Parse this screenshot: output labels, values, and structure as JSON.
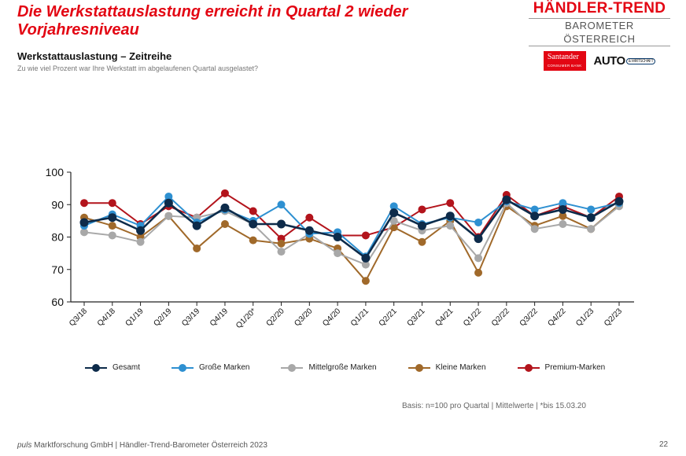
{
  "header": {
    "headline": "Die Werkstattauslastung erreicht in Quartal 2 wieder Vorjahresniveau",
    "subtitle": "Werkstattauslastung – Zeitreihe",
    "question": "Zu wie viel Prozent war Ihre Werkstatt im abgelaufenen Quartal ausgelastet?"
  },
  "logo": {
    "title": "HÄNDLER-TREND",
    "subtitle": "BAROMETER ÖSTERREICH",
    "santander": "Santander",
    "santander_sub": "CONSUMER BANK",
    "auto": "AUTO",
    "auto_sub": "& WIRTSCHAFT"
  },
  "chart_data": {
    "type": "line",
    "categories": [
      "Q3/18",
      "Q4/18",
      "Q1/19",
      "Q2/19",
      "Q3/19",
      "Q4/19",
      "Q1/20*",
      "Q2/20",
      "Q3/20",
      "Q4/20",
      "Q1/21",
      "Q2/21",
      "Q3/21",
      "Q4/21",
      "Q1/22",
      "Q2/22",
      "Q3/22",
      "Q4/22",
      "Q1/23",
      "Q2/23"
    ],
    "ylim": [
      60,
      100
    ],
    "yticks": [
      60,
      70,
      80,
      90,
      100
    ],
    "grid": false,
    "legend_position": "bottom",
    "series": [
      {
        "name": "Gesamt",
        "color": "#0d2b4a",
        "values": [
          84.5,
          86,
          82,
          90.5,
          83.5,
          89,
          84,
          84,
          82,
          80,
          73.5,
          87.5,
          83.5,
          86.5,
          79.5,
          91.5,
          86.5,
          88.5,
          86,
          91
        ]
      },
      {
        "name": "Große Marken",
        "color": "#2e90d1",
        "values": [
          83.5,
          87,
          83.5,
          92.5,
          84.5,
          88.5,
          85,
          90,
          81,
          81.5,
          74,
          89.5,
          84,
          86,
          84.5,
          91,
          88.5,
          90.5,
          88.5,
          90.5
        ]
      },
      {
        "name": "Mittelgroße Marken",
        "color": "#a8a8a8",
        "values": [
          81.5,
          80.5,
          78.5,
          86.5,
          86,
          88,
          84,
          75.5,
          81,
          75,
          71.5,
          85,
          82,
          83.5,
          73.5,
          90.5,
          82.5,
          84,
          82.5,
          89.5
        ]
      },
      {
        "name": "Kleine Marken",
        "color": "#a0692a",
        "values": [
          86,
          83.5,
          80,
          86.5,
          76.5,
          84,
          79,
          78,
          79.5,
          76.5,
          66.5,
          83,
          78.5,
          85,
          69,
          89.5,
          83.5,
          86.5,
          82.5,
          90
        ]
      },
      {
        "name": "Premium-Marken",
        "color": "#b3141c",
        "values": [
          90.5,
          90.5,
          84,
          89.5,
          86,
          93.5,
          88,
          79.5,
          86,
          80.5,
          80.5,
          83,
          88.5,
          90.5,
          80,
          93,
          86.5,
          89.5,
          86,
          92.5
        ]
      }
    ]
  },
  "footer": {
    "basis": "Basis: n=100 pro Quartal | Mittelwerte | *bis 15.03.20",
    "source_brand": "puls",
    "source_rest": "Marktforschung GmbH | Händler-Trend-Barometer Österreich 2023",
    "page": "22"
  }
}
